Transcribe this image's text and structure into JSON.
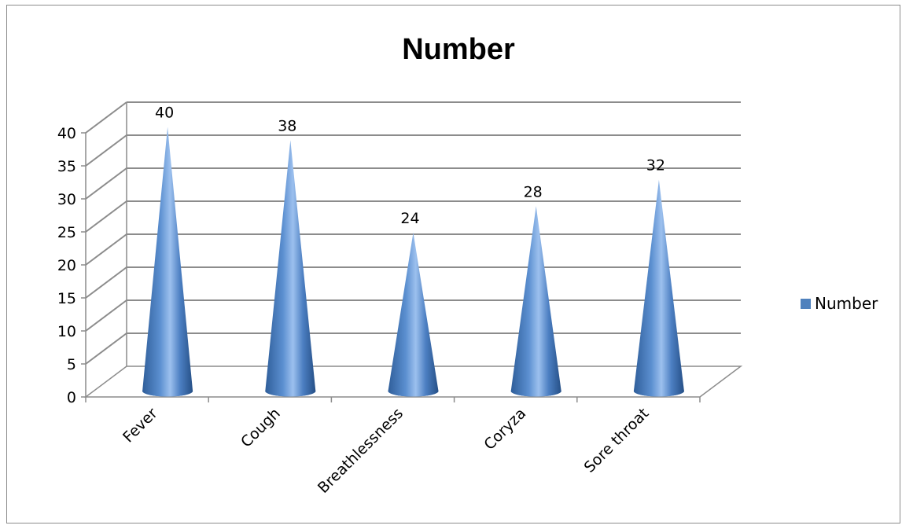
{
  "chart_data": {
    "type": "bar",
    "bar_shape": "cone-3d",
    "title": "Number",
    "categories": [
      "Fever",
      "Cough",
      "Breathlessness",
      "Coryza",
      "Sore throat"
    ],
    "series": [
      {
        "name": "Number",
        "values": [
          40,
          38,
          24,
          28,
          32
        ],
        "color": "#4f81bd"
      }
    ],
    "ylim": [
      0,
      40
    ],
    "yticks": [
      0,
      5,
      10,
      15,
      20,
      25,
      30,
      35,
      40
    ],
    "grid": true,
    "data_labels": true,
    "legend": {
      "position": "right",
      "entries": [
        "Number"
      ]
    }
  }
}
